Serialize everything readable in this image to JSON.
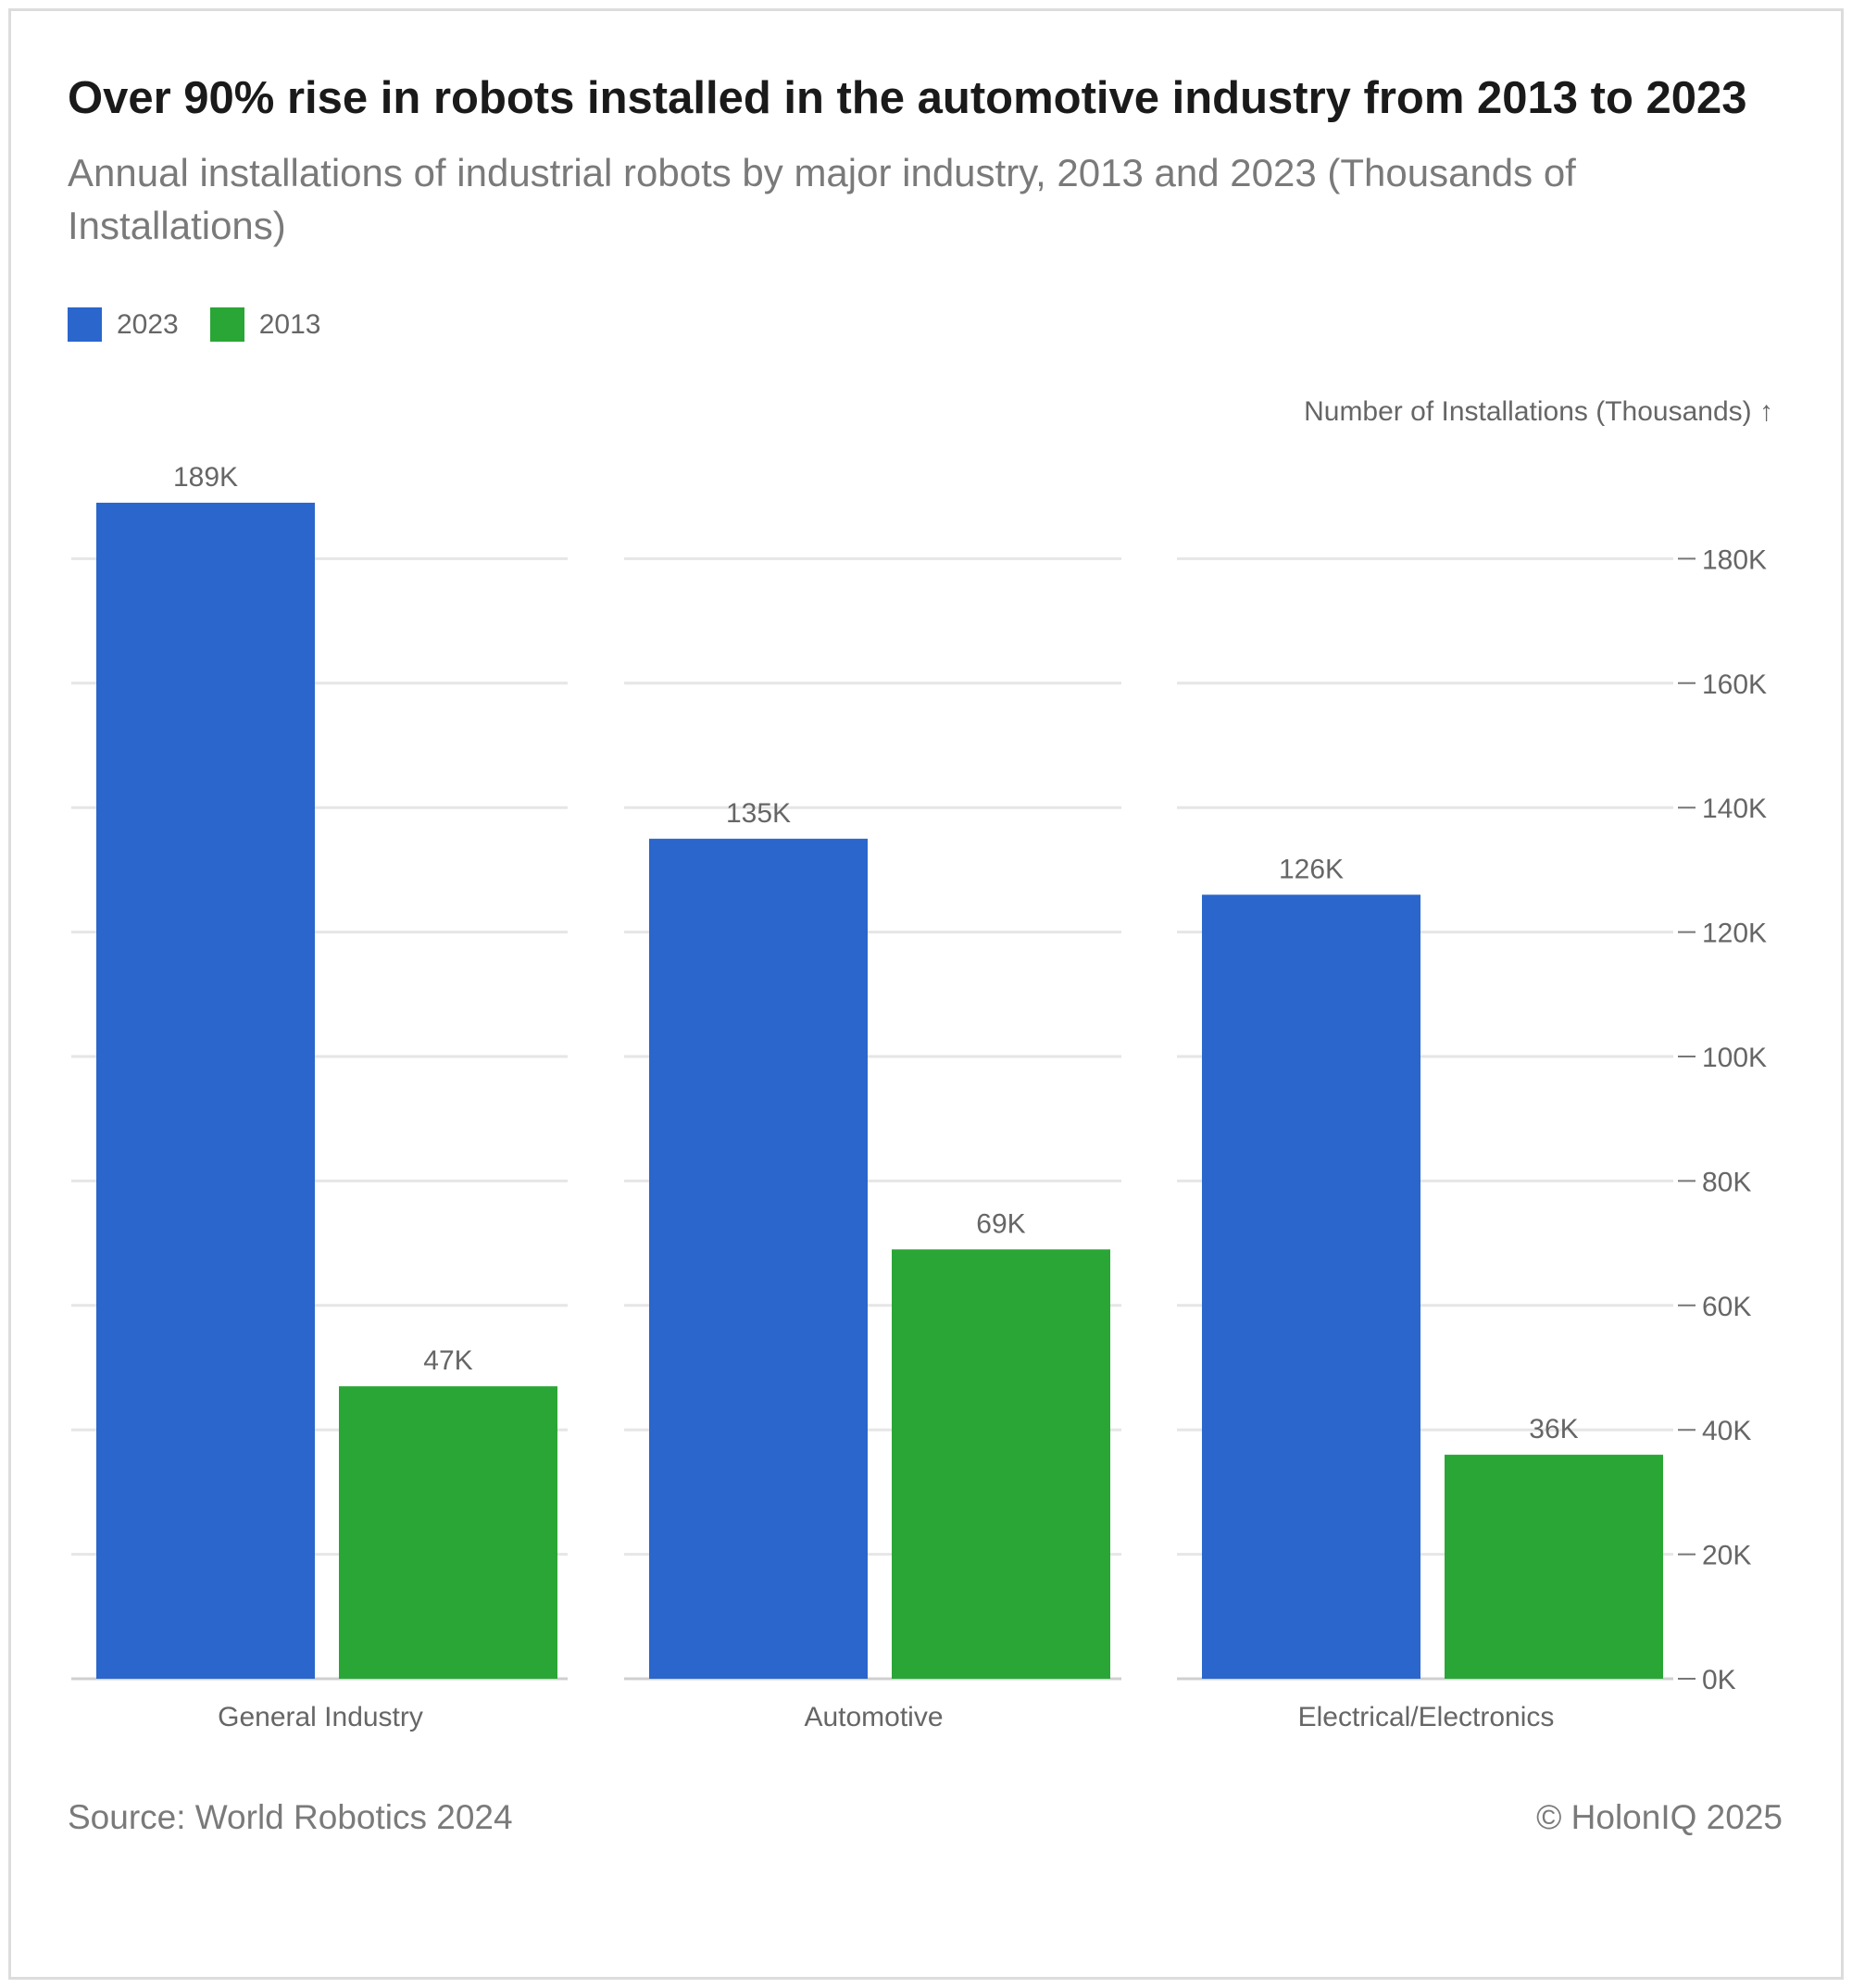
{
  "title": "Over 90% rise in robots installed in the automotive industry from 2013 to 2023",
  "subtitle": "Annual installations of industrial robots by major industry, 2013 and 2023 (Thousands of Installations)",
  "legend": [
    {
      "label": "2023",
      "color": "#2a66cc"
    },
    {
      "label": "2013",
      "color": "#2aa636"
    }
  ],
  "footer": {
    "source": "Source: World Robotics 2024",
    "copyright": "© HolonIQ 2025"
  },
  "chart_data": {
    "type": "bar",
    "categories": [
      "General Industry",
      "Automotive",
      "Electrical/Electronics"
    ],
    "series": [
      {
        "name": "2023",
        "color": "#2a66cc",
        "values": [
          189,
          135,
          126
        ],
        "labels": [
          "189K",
          "135K",
          "126K"
        ]
      },
      {
        "name": "2013",
        "color": "#2aa636",
        "values": [
          47,
          69,
          36
        ],
        "labels": [
          "47K",
          "69K",
          "36K"
        ]
      }
    ],
    "ylabel": "Number of Installations (Thousands) ↑",
    "yticks": [
      0,
      20,
      40,
      60,
      80,
      100,
      120,
      140,
      160,
      180
    ],
    "ytick_labels": [
      "0K",
      "20K",
      "40K",
      "60K",
      "80K",
      "100K",
      "120K",
      "140K",
      "160K",
      "180K"
    ],
    "ylim": [
      0,
      189
    ],
    "grid": true,
    "y_axis_position": "right"
  }
}
